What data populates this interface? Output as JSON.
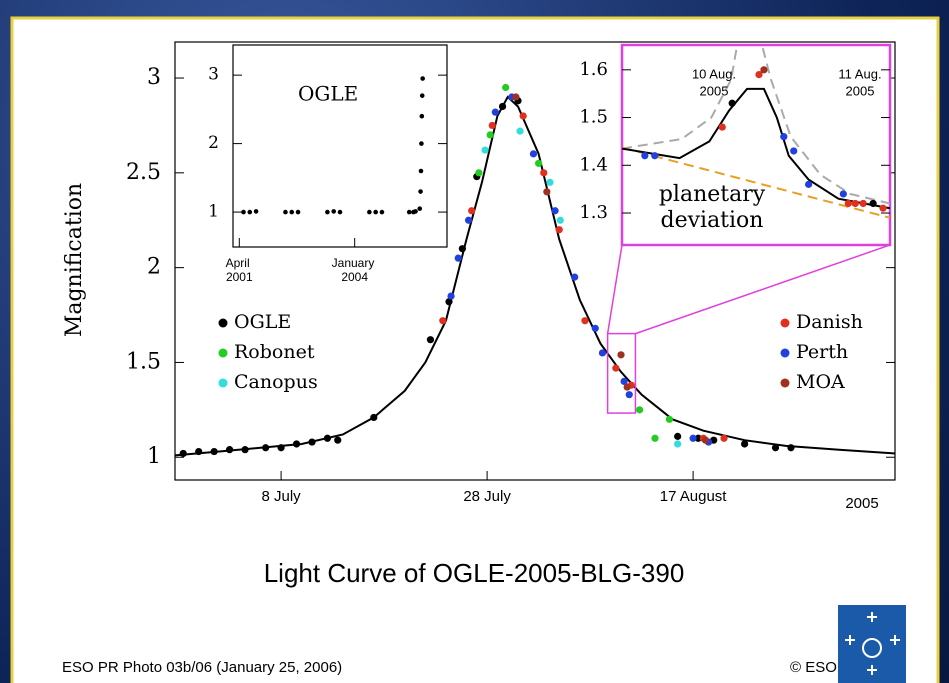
{
  "chart_data": [
    {
      "type": "scatter",
      "title": "Light Curve of OGLE-2005-BLG-390",
      "y_label": "Magnification",
      "x_note": "2005",
      "frame_color": "#000000",
      "xlim": [
        -2.3,
        67.6
      ],
      "ylim": [
        0.88,
        3.19
      ],
      "xticks": [
        {
          "value": 8,
          "label": "8 July"
        },
        {
          "value": 28,
          "label": "28 July"
        },
        {
          "value": 48,
          "label": "17 August"
        }
      ],
      "yticks": [
        1,
        1.5,
        2,
        2.5,
        3
      ],
      "curves": [
        {
          "color": "#000000",
          "x": [
            -2.3,
            2,
            6,
            10,
            14,
            17,
            20,
            22,
            24,
            26,
            27.5,
            29,
            30,
            31,
            33,
            35,
            37,
            39,
            41,
            43,
            46,
            49,
            53,
            57,
            62,
            67.6
          ],
          "values": [
            1.01,
            1.03,
            1.05,
            1.07,
            1.12,
            1.21,
            1.35,
            1.5,
            1.72,
            2.15,
            2.45,
            2.8,
            2.9,
            2.85,
            2.6,
            2.15,
            1.83,
            1.6,
            1.45,
            1.33,
            1.2,
            1.14,
            1.09,
            1.06,
            1.04,
            1.02
          ]
        }
      ],
      "series": [
        {
          "name": "OGLE",
          "color": "#000000",
          "x": [
            -1.5,
            0,
            1.5,
            3,
            4.5,
            6.5,
            8,
            9.5,
            11,
            12.5,
            13.5,
            17,
            22.5,
            24.3,
            25.6,
            27,
            29.5,
            31,
            46.5,
            48.5,
            50,
            53,
            56,
            57.5
          ],
          "values": [
            1.02,
            1.03,
            1.03,
            1.04,
            1.04,
            1.05,
            1.05,
            1.07,
            1.08,
            1.1,
            1.09,
            1.21,
            1.62,
            1.82,
            2.1,
            2.48,
            2.85,
            2.88,
            1.11,
            1.1,
            1.09,
            1.07,
            1.05,
            1.05
          ]
        },
        {
          "name": "Robonet",
          "color": "#22cc22",
          "x": [
            27.2,
            28.3,
            29.8,
            33,
            42.8,
            44.3,
            45.7
          ],
          "values": [
            2.5,
            2.7,
            2.95,
            2.55,
            1.25,
            1.1,
            1.2
          ]
        },
        {
          "name": "Canopus",
          "color": "#33dddd",
          "x": [
            27.8,
            31.2,
            34.1,
            35.1,
            46.5
          ],
          "values": [
            2.62,
            2.72,
            2.45,
            2.25,
            1.07
          ]
        },
        {
          "name": "Danish",
          "color": "#e03020",
          "x": [
            23.7,
            26.5,
            28.5,
            31.5,
            33.5,
            35,
            37.5,
            40.5,
            42,
            49,
            51
          ],
          "values": [
            1.72,
            2.3,
            2.75,
            2.8,
            2.5,
            2.2,
            1.72,
            1.47,
            1.38,
            1.1,
            1.1
          ]
        },
        {
          "name": "Perth",
          "color": "#2040e0",
          "x": [
            24.5,
            25.2,
            26.2,
            28.8,
            30.4,
            32.5,
            34.6,
            36.5,
            38.5,
            39.2,
            41.3,
            41.8,
            48,
            49.5
          ],
          "values": [
            1.85,
            2.05,
            2.25,
            2.82,
            2.9,
            2.6,
            2.3,
            1.95,
            1.68,
            1.55,
            1.4,
            1.33,
            1.1,
            1.08
          ]
        },
        {
          "name": "MOA",
          "color": "#a03020",
          "x": [
            30.8,
            33.8,
            41,
            41.6,
            49.2
          ],
          "values": [
            2.9,
            2.4,
            1.54,
            1.37,
            1.09
          ]
        }
      ]
    },
    {
      "type": "scatter",
      "label": "OGLE",
      "frame_color": "#000000",
      "xlim": [
        2001.1,
        2006.2
      ],
      "ylim": [
        0.49,
        3.44
      ],
      "xticks": [
        {
          "value": 2001.25,
          "label": "April 2001"
        },
        {
          "value": 2004.0,
          "label": "January 2004"
        }
      ],
      "yticks": [
        1,
        2,
        3
      ],
      "series": [
        {
          "color": "#000000",
          "x": [
            2001.35,
            2001.5,
            2001.65,
            2002.35,
            2002.5,
            2002.65,
            2003.35,
            2003.5,
            2003.65,
            2004.35,
            2004.5,
            2004.65,
            2005.3,
            2005.4,
            2005.45,
            2005.55,
            2005.57,
            2005.58,
            2005.59,
            2005.6,
            2005.61,
            2005.62
          ],
          "values": [
            1.0,
            1.0,
            1.01,
            1.0,
            1.0,
            1.0,
            1.0,
            1.01,
            1.0,
            1.0,
            1.0,
            1.0,
            1.0,
            1.0,
            1.01,
            1.05,
            1.3,
            1.6,
            2.0,
            2.4,
            2.7,
            2.95
          ]
        }
      ]
    },
    {
      "type": "scatter",
      "frame_color": "#e040e0",
      "xlim": [
        39.7,
        42.4
      ],
      "ylim": [
        1.233,
        1.652
      ],
      "yticks": [
        1.3,
        1.4,
        1.5,
        1.6
      ],
      "annotations": [
        {
          "lines": [
            "10 Aug.",
            "2005"
          ]
        },
        {
          "lines": [
            "11 Aug.",
            "2005"
          ]
        },
        {
          "lines": [
            "planetary",
            "deviation"
          ]
        }
      ],
      "curves": [
        {
          "color": "#aaaaaa",
          "dash": true,
          "x": [
            39.7,
            40.3,
            40.6,
            40.8,
            40.9,
            41.05,
            41.2,
            41.4,
            41.7,
            42.0,
            42.4
          ],
          "values": [
            1.435,
            1.455,
            1.5,
            1.58,
            1.7,
            1.7,
            1.58,
            1.46,
            1.38,
            1.34,
            1.32
          ]
        },
        {
          "color": "#e8a020",
          "dash": true,
          "x": [
            39.7,
            42.4
          ],
          "values": [
            1.437,
            1.29
          ]
        },
        {
          "color": "#000000",
          "x": [
            39.7,
            40.28,
            40.58,
            40.78,
            40.96,
            41.13,
            41.26,
            41.38,
            41.58,
            41.88,
            42.4
          ],
          "values": [
            1.435,
            1.415,
            1.45,
            1.515,
            1.56,
            1.56,
            1.5,
            1.42,
            1.37,
            1.33,
            1.31
          ]
        }
      ],
      "series": [
        {
          "color": "#2040e0",
          "x": [
            39.93,
            40.03,
            41.33,
            41.43,
            41.58,
            41.93
          ],
          "values": [
            1.42,
            1.42,
            1.46,
            1.43,
            1.36,
            1.34
          ]
        },
        {
          "color": "#e03020",
          "x": [
            40.71,
            41.08,
            41.98,
            42.05,
            42.13,
            42.33
          ],
          "values": [
            1.48,
            1.59,
            1.32,
            1.32,
            1.32,
            1.31
          ]
        },
        {
          "color": "#000000",
          "x": [
            40.81,
            42.23
          ],
          "values": [
            1.53,
            1.32
          ]
        },
        {
          "color": "#a03020",
          "x": [
            41.13
          ],
          "values": [
            1.6
          ]
        }
      ]
    }
  ],
  "footer": {
    "credit": "ESO PR Photo 03b/06 (January 25, 2006)",
    "copyright": "© ESO"
  }
}
